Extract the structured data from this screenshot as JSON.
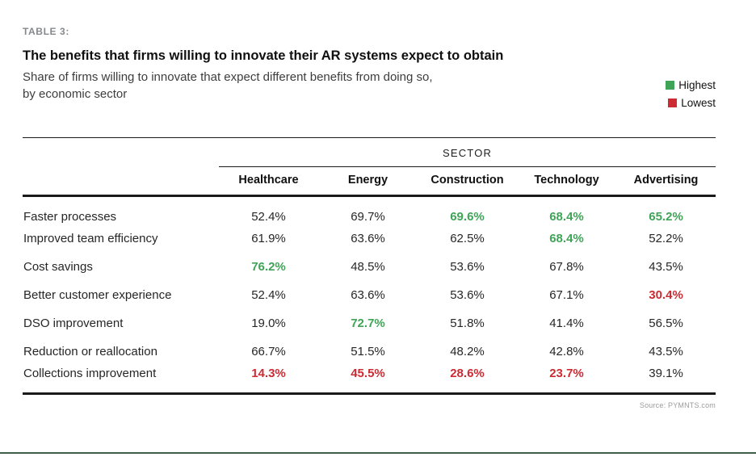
{
  "header": {
    "table_label": "TABLE 3:",
    "title": "The benefits that firms willing to innovate their AR systems expect to obtain",
    "subtitle_line1": "Share of firms willing to innovate that expect different benefits from doing so,",
    "subtitle_line2": "by economic sector"
  },
  "legend": {
    "items": [
      {
        "label": "Highest",
        "color": "#3fa457",
        "swatch": "green-square-icon"
      },
      {
        "label": "Lowest",
        "color": "#cc2b33",
        "swatch": "red-square-icon"
      }
    ]
  },
  "chart_data": {
    "type": "table",
    "group_header": "SECTOR",
    "columns": [
      "Healthcare",
      "Energy",
      "Construction",
      "Technology",
      "Advertising"
    ],
    "rows": [
      {
        "label": "Faster processes",
        "values": [
          "52.4%",
          "69.7%",
          "69.6%",
          "68.4%",
          "65.2%"
        ],
        "highlights": [
          "none",
          "none",
          "highest",
          "highest",
          "highest"
        ]
      },
      {
        "label": "Improved team efficiency",
        "values": [
          "61.9%",
          "63.6%",
          "62.5%",
          "68.4%",
          "52.2%"
        ],
        "highlights": [
          "none",
          "none",
          "none",
          "highest",
          "none"
        ]
      },
      {
        "label": "Cost savings",
        "values": [
          "76.2%",
          "48.5%",
          "53.6%",
          "67.8%",
          "43.5%"
        ],
        "highlights": [
          "highest",
          "none",
          "none",
          "none",
          "none"
        ]
      },
      {
        "label": "Better customer experience",
        "values": [
          "52.4%",
          "63.6%",
          "53.6%",
          "67.1%",
          "30.4%"
        ],
        "highlights": [
          "none",
          "none",
          "none",
          "none",
          "lowest"
        ]
      },
      {
        "label": "DSO improvement",
        "values": [
          "19.0%",
          "72.7%",
          "51.8%",
          "41.4%",
          "56.5%"
        ],
        "highlights": [
          "none",
          "highest",
          "none",
          "none",
          "none"
        ]
      },
      {
        "label": "Reduction or reallocation",
        "values": [
          "66.7%",
          "51.5%",
          "48.2%",
          "42.8%",
          "43.5%"
        ],
        "highlights": [
          "none",
          "none",
          "none",
          "none",
          "none"
        ]
      },
      {
        "label": "Collections improvement",
        "values": [
          "14.3%",
          "45.5%",
          "28.6%",
          "23.7%",
          "39.1%"
        ],
        "highlights": [
          "lowest",
          "lowest",
          "lowest",
          "lowest",
          "none"
        ]
      }
    ],
    "legend_entries": [
      "Highest",
      "Lowest"
    ]
  },
  "footer": {
    "source": "Source: PYMNTS.com"
  },
  "colors": {
    "highest": "#3fa457",
    "lowest": "#cc2b33",
    "footer_rule": "#3e6049"
  }
}
